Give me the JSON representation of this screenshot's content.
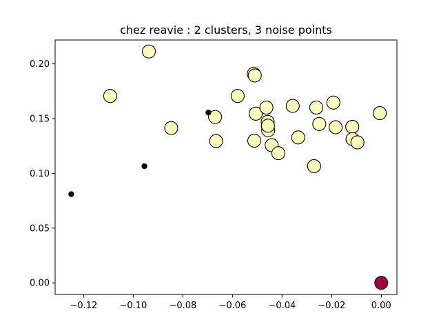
{
  "chart_data": {
    "type": "scatter",
    "title": "chez reavie : 2 clusters, 3 noise points",
    "xlabel": "",
    "ylabel": "",
    "xlim": [
      -0.1315,
      0.0063
    ],
    "ylim": [
      -0.0106,
      0.2218
    ],
    "xticks": [
      {
        "value": -0.12,
        "label": "−0.12"
      },
      {
        "value": -0.1,
        "label": "−0.10"
      },
      {
        "value": -0.08,
        "label": "−0.08"
      },
      {
        "value": -0.06,
        "label": "−0.06"
      },
      {
        "value": -0.04,
        "label": "−0.04"
      },
      {
        "value": -0.02,
        "label": "−0.02"
      },
      {
        "value": 0.0,
        "label": "0.00"
      }
    ],
    "yticks": [
      {
        "value": 0.0,
        "label": "0.00"
      },
      {
        "value": 0.05,
        "label": "0.05"
      },
      {
        "value": 0.1,
        "label": "0.10"
      },
      {
        "value": 0.15,
        "label": "0.15"
      },
      {
        "value": 0.2,
        "label": "0.20"
      }
    ],
    "grid": false,
    "legend": "none",
    "series": [
      {
        "role": "cluster",
        "color": "#ffffbe",
        "edge_color": "#000000",
        "marker": "large-circle",
        "points": [
          [
            -0.0937,
            0.2113
          ],
          [
            -0.1093,
            0.1707
          ],
          [
            -0.0514,
            0.1909
          ],
          [
            -0.051,
            0.1894
          ],
          [
            -0.0579,
            0.1707
          ],
          [
            -0.067,
            0.1515
          ],
          [
            -0.0847,
            0.1414
          ],
          [
            -0.0666,
            0.1295
          ],
          [
            -0.0506,
            0.1545
          ],
          [
            -0.0463,
            0.1601
          ],
          [
            -0.0458,
            0.147
          ],
          [
            -0.0456,
            0.1394
          ],
          [
            -0.0457,
            0.1435
          ],
          [
            -0.0512,
            0.1298
          ],
          [
            -0.0442,
            0.1257
          ],
          [
            -0.0415,
            0.1184
          ],
          [
            -0.0357,
            0.1616
          ],
          [
            -0.0335,
            0.1328
          ],
          [
            -0.0262,
            0.1601
          ],
          [
            -0.0271,
            0.1066
          ],
          [
            -0.025,
            0.1451
          ],
          [
            -0.0193,
            0.1646
          ],
          [
            -0.0184,
            0.1421
          ],
          [
            -0.0117,
            0.1425
          ],
          [
            -0.0116,
            0.1313
          ],
          [
            -0.0096,
            0.1283
          ],
          [
            -0.0006,
            0.155
          ]
        ]
      },
      {
        "role": "cluster",
        "color": "#9e0142",
        "edge_color": "#000000",
        "marker": "large-circle",
        "points": [
          [
            0.0,
            0.0
          ]
        ]
      },
      {
        "role": "noise",
        "color": "#000000",
        "edge_color": "#000000",
        "marker": "small-dot",
        "points": [
          [
            -0.125,
            0.081
          ],
          [
            -0.0955,
            0.1065
          ],
          [
            -0.0697,
            0.1555
          ]
        ]
      }
    ]
  }
}
